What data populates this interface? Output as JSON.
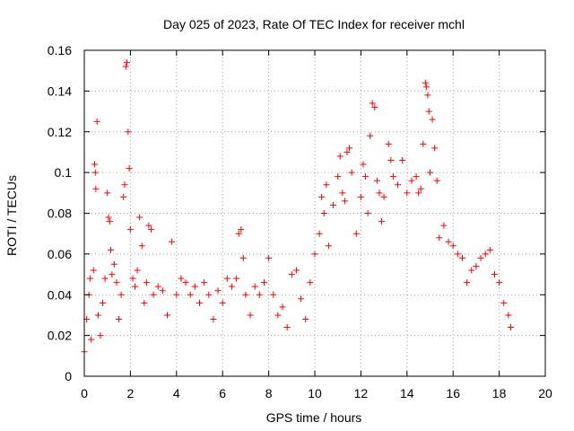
{
  "chart_data": {
    "type": "scatter",
    "title": "Day 025 of 2023, Rate Of TEC Index for receiver mchl",
    "xlabel": "GPS time / hours",
    "ylabel": "ROTI / TECUs",
    "xlim": [
      0,
      20
    ],
    "ylim": [
      0,
      0.16
    ],
    "xticks": [
      0,
      2,
      4,
      6,
      8,
      10,
      12,
      14,
      16,
      18,
      20
    ],
    "xtick_labels": [
      "0",
      "2",
      "4",
      "6",
      "8",
      "10",
      "12",
      "14",
      "16",
      "18",
      "20"
    ],
    "yticks": [
      0,
      0.02,
      0.04,
      0.06,
      0.08,
      0.1,
      0.12,
      0.14,
      0.16
    ],
    "ytick_labels": [
      "0",
      "0.02",
      "0.04",
      "0.06",
      "0.08",
      "0.1",
      "0.12",
      "0.14",
      "0.16"
    ],
    "grid": true,
    "marker": "+",
    "marker_color": "#ff0000",
    "series": [
      {
        "name": "ROTI",
        "points": [
          [
            0.0,
            0.012
          ],
          [
            0.1,
            0.028
          ],
          [
            0.2,
            0.04
          ],
          [
            0.25,
            0.048
          ],
          [
            0.3,
            0.018
          ],
          [
            0.4,
            0.052
          ],
          [
            0.45,
            0.104
          ],
          [
            0.48,
            0.1
          ],
          [
            0.5,
            0.092
          ],
          [
            0.55,
            0.125
          ],
          [
            0.6,
            0.03
          ],
          [
            0.7,
            0.02
          ],
          [
            0.8,
            0.036
          ],
          [
            0.9,
            0.048
          ],
          [
            1.0,
            0.09
          ],
          [
            1.05,
            0.078
          ],
          [
            1.1,
            0.076
          ],
          [
            1.15,
            0.062
          ],
          [
            1.2,
            0.05
          ],
          [
            1.3,
            0.055
          ],
          [
            1.4,
            0.046
          ],
          [
            1.5,
            0.028
          ],
          [
            1.6,
            0.04
          ],
          [
            1.7,
            0.088
          ],
          [
            1.75,
            0.094
          ],
          [
            1.8,
            0.152
          ],
          [
            1.85,
            0.154
          ],
          [
            1.9,
            0.12
          ],
          [
            1.95,
            0.102
          ],
          [
            2.0,
            0.072
          ],
          [
            2.1,
            0.048
          ],
          [
            2.2,
            0.044
          ],
          [
            2.3,
            0.052
          ],
          [
            2.4,
            0.078
          ],
          [
            2.5,
            0.064
          ],
          [
            2.6,
            0.036
          ],
          [
            2.7,
            0.046
          ],
          [
            2.8,
            0.074
          ],
          [
            2.9,
            0.072
          ],
          [
            3.0,
            0.04
          ],
          [
            3.2,
            0.044
          ],
          [
            3.4,
            0.042
          ],
          [
            3.6,
            0.03
          ],
          [
            3.8,
            0.066
          ],
          [
            4.0,
            0.04
          ],
          [
            4.2,
            0.048
          ],
          [
            4.4,
            0.046
          ],
          [
            4.6,
            0.04
          ],
          [
            4.8,
            0.044
          ],
          [
            5.0,
            0.036
          ],
          [
            5.2,
            0.046
          ],
          [
            5.4,
            0.04
          ],
          [
            5.6,
            0.028
          ],
          [
            5.8,
            0.042
          ],
          [
            6.0,
            0.036
          ],
          [
            6.2,
            0.048
          ],
          [
            6.4,
            0.044
          ],
          [
            6.6,
            0.048
          ],
          [
            6.7,
            0.07
          ],
          [
            6.8,
            0.072
          ],
          [
            6.9,
            0.058
          ],
          [
            7.0,
            0.04
          ],
          [
            7.2,
            0.03
          ],
          [
            7.4,
            0.044
          ],
          [
            7.6,
            0.04
          ],
          [
            7.8,
            0.046
          ],
          [
            8.0,
            0.058
          ],
          [
            8.2,
            0.04
          ],
          [
            8.4,
            0.03
          ],
          [
            8.6,
            0.034
          ],
          [
            8.8,
            0.024
          ],
          [
            9.0,
            0.05
          ],
          [
            9.2,
            0.052
          ],
          [
            9.4,
            0.038
          ],
          [
            9.6,
            0.028
          ],
          [
            9.8,
            0.046
          ],
          [
            10.0,
            0.06
          ],
          [
            10.2,
            0.07
          ],
          [
            10.3,
            0.088
          ],
          [
            10.4,
            0.08
          ],
          [
            10.5,
            0.094
          ],
          [
            10.6,
            0.064
          ],
          [
            10.8,
            0.084
          ],
          [
            11.0,
            0.098
          ],
          [
            11.1,
            0.108
          ],
          [
            11.2,
            0.09
          ],
          [
            11.3,
            0.086
          ],
          [
            11.4,
            0.11
          ],
          [
            11.5,
            0.112
          ],
          [
            11.6,
            0.1
          ],
          [
            11.8,
            0.07
          ],
          [
            12.0,
            0.088
          ],
          [
            12.1,
            0.104
          ],
          [
            12.2,
            0.098
          ],
          [
            12.3,
            0.08
          ],
          [
            12.4,
            0.118
          ],
          [
            12.5,
            0.134
          ],
          [
            12.6,
            0.132
          ],
          [
            12.7,
            0.096
          ],
          [
            12.8,
            0.09
          ],
          [
            12.9,
            0.076
          ],
          [
            13.0,
            0.088
          ],
          [
            13.2,
            0.114
          ],
          [
            13.3,
            0.106
          ],
          [
            13.4,
            0.098
          ],
          [
            13.6,
            0.094
          ],
          [
            13.8,
            0.106
          ],
          [
            14.0,
            0.09
          ],
          [
            14.2,
            0.096
          ],
          [
            14.4,
            0.098
          ],
          [
            14.5,
            0.09
          ],
          [
            14.6,
            0.092
          ],
          [
            14.7,
            0.114
          ],
          [
            14.8,
            0.144
          ],
          [
            14.85,
            0.142
          ],
          [
            14.9,
            0.138
          ],
          [
            14.95,
            0.13
          ],
          [
            15.0,
            0.1
          ],
          [
            15.1,
            0.126
          ],
          [
            15.2,
            0.112
          ],
          [
            15.3,
            0.096
          ],
          [
            15.4,
            0.068
          ],
          [
            15.6,
            0.074
          ],
          [
            15.8,
            0.066
          ],
          [
            16.0,
            0.064
          ],
          [
            16.2,
            0.06
          ],
          [
            16.4,
            0.058
          ],
          [
            16.6,
            0.046
          ],
          [
            16.8,
            0.052
          ],
          [
            17.0,
            0.054
          ],
          [
            17.2,
            0.058
          ],
          [
            17.4,
            0.06
          ],
          [
            17.6,
            0.062
          ],
          [
            17.8,
            0.05
          ],
          [
            18.0,
            0.046
          ],
          [
            18.2,
            0.036
          ],
          [
            18.4,
            0.03
          ],
          [
            18.5,
            0.024
          ]
        ]
      }
    ]
  }
}
